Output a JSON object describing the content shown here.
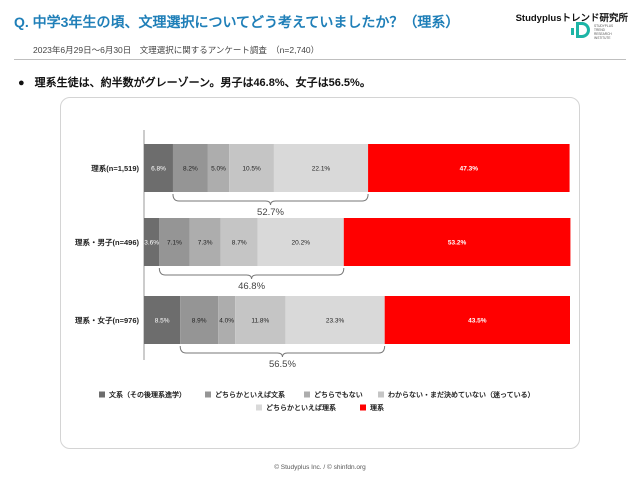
{
  "header": {
    "title": "Q. 中学3年生の頃、文理選択についてどう考えていましたか？（理系）",
    "brand": "Studyplusトレンド研究所",
    "logo_text": "STUDYPLUS TREND RESEARCH INSTITUTE",
    "survey_note": "2023年6月29日〜6月30日　文理選択に関するアンケート調査　（n=2,740）"
  },
  "summary": {
    "bullet": "●",
    "text": "理系生徒は、約半数がグレーゾーン。男子は46.8%、女子は56.5%。"
  },
  "chart_data": {
    "type": "bar",
    "orientation": "horizontal",
    "stacked": "100%",
    "categories": [
      "理系(n=1,519)",
      "理系・男子(n=496)",
      "理系・女子(n=976)"
    ],
    "series": [
      {
        "name": "文系（その後理系進学）",
        "color": "#6d6d6d",
        "values": [
          6.8,
          3.6,
          8.5
        ],
        "labels": [
          "6.8%",
          "3.6%",
          "8.5%"
        ]
      },
      {
        "name": "どちらかといえば文系",
        "color": "#959595",
        "values": [
          8.2,
          7.1,
          8.9
        ],
        "labels": [
          "8.2%",
          "7.1%",
          "8.9%"
        ]
      },
      {
        "name": "どちらでもない",
        "color": "#adadad",
        "values": [
          5.0,
          7.3,
          4.0
        ],
        "labels": [
          "5.0%",
          "7.3%",
          "4.0%"
        ]
      },
      {
        "name": "わからない・まだ決めていない（迷っている）",
        "color": "#c5c5c5",
        "values": [
          10.5,
          8.7,
          11.8
        ],
        "labels": [
          "10.5%",
          "8.7%",
          "11.8%"
        ]
      },
      {
        "name": "どちらかといえば理系",
        "color": "#d9d9d9",
        "values": [
          22.1,
          20.2,
          23.3
        ],
        "labels": [
          "22.1%",
          "20.2%",
          "23.3%"
        ]
      },
      {
        "name": "理系",
        "color": "#ff0000",
        "values": [
          47.3,
          53.2,
          43.5
        ],
        "labels": [
          "47.3%",
          "53.2%",
          "43.5%"
        ]
      }
    ],
    "gray_zone_totals": [
      {
        "value": 52.7,
        "label": "52.7%"
      },
      {
        "value": 46.8,
        "label": "46.8%"
      },
      {
        "value": 56.5,
        "label": "56.5%"
      }
    ],
    "xlim": [
      0,
      100
    ],
    "legend_position": "bottom",
    "grid": false
  },
  "footer": {
    "text": "© Studyplus Inc.  /  © shinfdn.org"
  }
}
